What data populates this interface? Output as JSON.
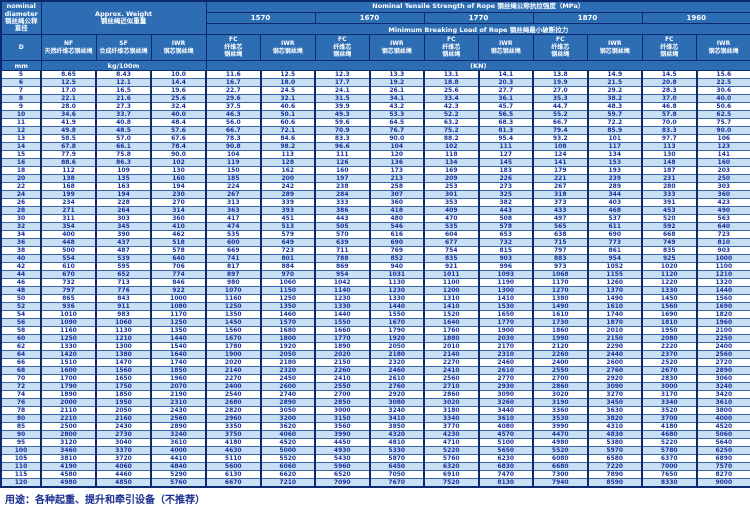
{
  "header": {
    "diameter_title": "nominal\ndiameter\n钢丝绳公称直径",
    "weight_title": "Approx. Weight\n钢丝绳近似重量",
    "tensile_title": "Nominal Tensile Strength of Rope 钢丝绳公称抗拉强度（MPa）",
    "strengths": [
      "1570",
      "1670",
      "1770",
      "1870",
      "1960"
    ],
    "breaking_title": "Minimum Breaking Load of Rope 钢丝绳最小破断拉力",
    "col_d": "D",
    "col_nf": "NF\n天然纤维芯钢丝绳",
    "col_sf": "SF\n合成纤维芯钢丝绳",
    "col_iwr_weight": "IWR\n钢芯钢丝绳",
    "col_fc": "FC\n纤维芯\n钢丝绳",
    "col_iwr": "IWR\n钢芯钢丝绳",
    "unit_mm": "mm",
    "unit_kg": "kg/100m",
    "unit_kn": "(KN)"
  },
  "columns": [
    "D mm",
    "NF kg/100m",
    "SF kg/100m",
    "IWR kg/100m",
    "1570 FC",
    "1570 IWR",
    "1670 FC",
    "1670 IWR",
    "1770 FC",
    "1770 IWR",
    "1870 FC",
    "1870 IWR",
    "1960 FC",
    "1960 IWR"
  ],
  "rows": [
    [
      "5",
      "8.65",
      "8.43",
      "10.0",
      "11.6",
      "12.5",
      "12.3",
      "13.3",
      "13.1",
      "14.1",
      "13.8",
      "14.9",
      "14.5",
      "15.6"
    ],
    [
      "6",
      "12.5",
      "12.1",
      "14.4",
      "16.7",
      "18.0",
      "17.7",
      "19.2",
      "18.8",
      "20.3",
      "19.9",
      "21.5",
      "20.8",
      "22.5"
    ],
    [
      "7",
      "17.0",
      "16.5",
      "19.6",
      "22.7",
      "24.5",
      "24.1",
      "26.1",
      "25.6",
      "27.7",
      "27.0",
      "29.2",
      "28.3",
      "30.6"
    ],
    [
      "8",
      "22.1",
      "21.6",
      "25.6",
      "29.6",
      "32.1",
      "31.5",
      "34.1",
      "33.4",
      "36.1",
      "35.3",
      "38.2",
      "37.0",
      "40.0"
    ],
    [
      "9",
      "28.0",
      "27.3",
      "32.4",
      "37.5",
      "40.6",
      "39.9",
      "43.2",
      "42.3",
      "45.7",
      "44.7",
      "48.3",
      "46.8",
      "50.6"
    ],
    [
      "10",
      "34.6",
      "33.7",
      "40.0",
      "46.3",
      "50.1",
      "49.3",
      "53.3",
      "52.2",
      "56.5",
      "55.2",
      "59.7",
      "57.8",
      "62.5"
    ],
    [
      "11",
      "41.9",
      "40.8",
      "48.4",
      "56.0",
      "60.6",
      "59.6",
      "64.5",
      "63.2",
      "68.3",
      "66.7",
      "72.2",
      "70.0",
      "75.7"
    ],
    [
      "12",
      "49.8",
      "48.5",
      "57.6",
      "66.7",
      "72.1",
      "70.9",
      "76.7",
      "75.2",
      "81.3",
      "79.4",
      "85.9",
      "83.3",
      "90.0"
    ],
    [
      "13",
      "58.5",
      "57.0",
      "67.6",
      "78.3",
      "84.6",
      "83.3",
      "90.0",
      "88.2",
      "95.4",
      "93.2",
      "101",
      "97.7",
      "106"
    ],
    [
      "14",
      "67.8",
      "66.1",
      "78.4",
      "90.8",
      "98.2",
      "96.6",
      "104",
      "102",
      "111",
      "108",
      "117",
      "113",
      "123"
    ],
    [
      "15",
      "77.9",
      "75.8",
      "90.0",
      "104",
      "113",
      "111",
      "120",
      "118",
      "127",
      "124",
      "134",
      "130",
      "141"
    ],
    [
      "16",
      "88.6",
      "86.3",
      "102",
      "119",
      "128",
      "126",
      "136",
      "134",
      "145",
      "141",
      "153",
      "148",
      "160"
    ],
    [
      "18",
      "112",
      "109",
      "130",
      "150",
      "162",
      "160",
      "173",
      "169",
      "183",
      "179",
      "193",
      "187",
      "203"
    ],
    [
      "20",
      "138",
      "135",
      "160",
      "185",
      "200",
      "197",
      "213",
      "209",
      "226",
      "221",
      "239",
      "231",
      "250"
    ],
    [
      "22",
      "168",
      "163",
      "194",
      "224",
      "242",
      "238",
      "258",
      "253",
      "273",
      "267",
      "289",
      "280",
      "303"
    ],
    [
      "24",
      "199",
      "194",
      "230",
      "267",
      "289",
      "284",
      "307",
      "301",
      "325",
      "318",
      "344",
      "333",
      "360"
    ],
    [
      "26",
      "234",
      "228",
      "270",
      "313",
      "339",
      "333",
      "360",
      "353",
      "382",
      "373",
      "403",
      "391",
      "423"
    ],
    [
      "28",
      "271",
      "264",
      "314",
      "363",
      "393",
      "386",
      "418",
      "409",
      "443",
      "433",
      "468",
      "453",
      "490"
    ],
    [
      "30",
      "311",
      "303",
      "360",
      "417",
      "451",
      "443",
      "480",
      "470",
      "508",
      "497",
      "537",
      "520",
      "563"
    ],
    [
      "32",
      "354",
      "345",
      "410",
      "474",
      "513",
      "505",
      "546",
      "535",
      "578",
      "565",
      "611",
      "592",
      "640"
    ],
    [
      "34",
      "400",
      "390",
      "462",
      "535",
      "579",
      "570",
      "616",
      "604",
      "653",
      "638",
      "690",
      "668",
      "723"
    ],
    [
      "36",
      "448",
      "437",
      "518",
      "600",
      "649",
      "639",
      "690",
      "677",
      "732",
      "715",
      "773",
      "749",
      "810"
    ],
    [
      "38",
      "500",
      "487",
      "578",
      "669",
      "723",
      "711",
      "769",
      "754",
      "815",
      "797",
      "861",
      "835",
      "903"
    ],
    [
      "40",
      "554",
      "539",
      "640",
      "741",
      "801",
      "788",
      "852",
      "835",
      "903",
      "883",
      "954",
      "925",
      "1000"
    ],
    [
      "42",
      "610",
      "595",
      "706",
      "817",
      "884",
      "869",
      "940",
      "921",
      "996",
      "973",
      "1052",
      "1020",
      "1100"
    ],
    [
      "44",
      "670",
      "652",
      "774",
      "897",
      "970",
      "954",
      "1031",
      "1011",
      "1093",
      "1068",
      "1155",
      "1120",
      "1210"
    ],
    [
      "46",
      "732",
      "713",
      "846",
      "980",
      "1060",
      "1042",
      "1130",
      "1100",
      "1190",
      "1170",
      "1260",
      "1220",
      "1320"
    ],
    [
      "48",
      "797",
      "776",
      "922",
      "1070",
      "1150",
      "1140",
      "1230",
      "1200",
      "1300",
      "1270",
      "1370",
      "1330",
      "1440"
    ],
    [
      "50",
      "865",
      "843",
      "1000",
      "1160",
      "1250",
      "1230",
      "1330",
      "1310",
      "1410",
      "1380",
      "1490",
      "1450",
      "1560"
    ],
    [
      "52",
      "936",
      "911",
      "1080",
      "1250",
      "1350",
      "1330",
      "1440",
      "1410",
      "1530",
      "1490",
      "1610",
      "1560",
      "1690"
    ],
    [
      "54",
      "1010",
      "983",
      "1170",
      "1350",
      "1460",
      "1440",
      "1550",
      "1520",
      "1650",
      "1610",
      "1740",
      "1690",
      "1820"
    ],
    [
      "56",
      "1090",
      "1060",
      "1250",
      "1450",
      "1570",
      "1550",
      "1670",
      "1640",
      "1770",
      "1730",
      "1870",
      "1810",
      "1960"
    ],
    [
      "58",
      "1160",
      "1130",
      "1350",
      "1560",
      "1680",
      "1660",
      "1790",
      "1760",
      "1900",
      "1860",
      "2010",
      "1950",
      "2100"
    ],
    [
      "60",
      "1250",
      "1210",
      "1440",
      "1670",
      "1800",
      "1770",
      "1920",
      "1880",
      "2030",
      "1990",
      "2150",
      "2080",
      "2250"
    ],
    [
      "62",
      "1330",
      "1300",
      "1540",
      "1780",
      "1920",
      "1890",
      "2050",
      "2010",
      "2170",
      "2120",
      "2290",
      "2220",
      "2400"
    ],
    [
      "64",
      "1420",
      "1380",
      "1640",
      "1900",
      "2050",
      "2020",
      "2180",
      "2140",
      "2310",
      "2260",
      "2440",
      "2370",
      "2560"
    ],
    [
      "66",
      "1510",
      "1470",
      "1740",
      "2020",
      "2180",
      "2150",
      "2320",
      "2270",
      "2460",
      "2400",
      "2600",
      "2520",
      "2720"
    ],
    [
      "68",
      "1600",
      "1560",
      "1850",
      "2140",
      "2320",
      "2260",
      "2460",
      "2410",
      "2610",
      "2550",
      "2760",
      "2670",
      "2890"
    ],
    [
      "70",
      "1700",
      "1650",
      "1960",
      "2270",
      "2450",
      "2410",
      "2610",
      "2560",
      "2770",
      "2700",
      "2920",
      "2830",
      "3060"
    ],
    [
      "72",
      "1790",
      "1750",
      "2070",
      "2400",
      "2600",
      "2550",
      "2760",
      "2710",
      "2930",
      "2860",
      "3090",
      "3000",
      "3240"
    ],
    [
      "74",
      "1890",
      "1850",
      "2190",
      "2540",
      "2740",
      "2700",
      "2920",
      "2860",
      "3090",
      "3020",
      "3270",
      "3170",
      "3420"
    ],
    [
      "76",
      "2000",
      "1950",
      "2310",
      "2680",
      "2890",
      "2850",
      "3080",
      "3020",
      "3260",
      "3190",
      "3450",
      "3340",
      "3610"
    ],
    [
      "78",
      "2110",
      "2050",
      "2430",
      "2820",
      "3050",
      "3000",
      "3240",
      "3180",
      "3440",
      "3360",
      "3630",
      "3520",
      "3800"
    ],
    [
      "80",
      "2210",
      "2160",
      "2560",
      "2960",
      "3200",
      "3150",
      "3410",
      "3340",
      "3610",
      "3530",
      "3820",
      "3700",
      "4000"
    ],
    [
      "85",
      "2500",
      "2430",
      "2890",
      "3350",
      "3620",
      "3560",
      "3850",
      "3770",
      "4080",
      "3990",
      "4310",
      "4180",
      "4520"
    ],
    [
      "90",
      "2800",
      "2730",
      "3240",
      "3750",
      "4060",
      "3990",
      "4320",
      "4230",
      "4570",
      "4470",
      "4830",
      "4680",
      "5060"
    ],
    [
      "95",
      "3120",
      "3040",
      "3610",
      "4180",
      "4520",
      "4450",
      "4810",
      "4710",
      "5100",
      "4980",
      "5380",
      "5220",
      "5640"
    ],
    [
      "100",
      "3460",
      "3370",
      "4000",
      "4630",
      "5000",
      "4930",
      "5330",
      "5220",
      "5650",
      "5520",
      "5970",
      "5780",
      "6250"
    ],
    [
      "105",
      "3810",
      "3720",
      "4410",
      "5110",
      "5520",
      "5430",
      "5870",
      "5760",
      "6230",
      "6080",
      "6580",
      "6370",
      "6890"
    ],
    [
      "110",
      "4190",
      "4060",
      "4840",
      "5600",
      "6060",
      "5960",
      "6450",
      "6320",
      "6830",
      "6680",
      "7220",
      "7000",
      "7570"
    ],
    [
      "115",
      "4580",
      "4460",
      "5290",
      "6130",
      "6620",
      "6520",
      "7050",
      "6910",
      "7470",
      "7300",
      "7890",
      "7650",
      "8270"
    ],
    [
      "120",
      "4980",
      "4850",
      "5760",
      "6670",
      "7210",
      "7090",
      "7670",
      "7520",
      "8130",
      "7940",
      "8590",
      "8330",
      "9000"
    ]
  ],
  "footer": "用途：各种起重、提升和牵引设备（不推荐）",
  "colors": {
    "header_bg": "#2d6db4",
    "stripe_bg": "#c9dff4",
    "border_dark": "#0d2a6e",
    "text_navy": "#16339b"
  }
}
